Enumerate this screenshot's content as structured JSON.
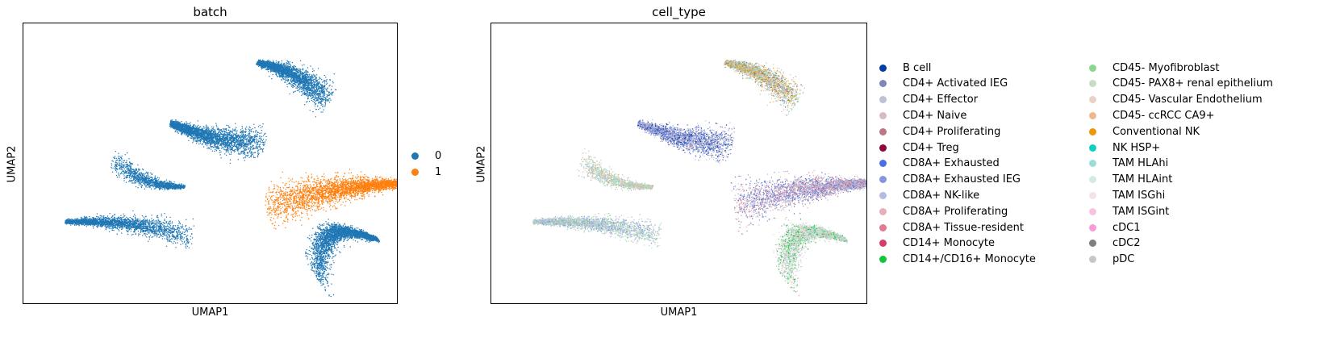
{
  "charts": [
    {
      "title": "batch",
      "xlabel": "UMAP1",
      "ylabel": "UMAP2",
      "legend_title": "",
      "legend": [
        {
          "label": "0",
          "color": "#1f77b4"
        },
        {
          "label": "1",
          "color": "#ff7f0e"
        }
      ]
    },
    {
      "title": "cell_type",
      "xlabel": "UMAP1",
      "ylabel": "UMAP2",
      "legend": [
        {
          "label": "B cell",
          "color": "#023fa5"
        },
        {
          "label": "CD4+ Activated IEG",
          "color": "#7d87b9"
        },
        {
          "label": "CD4+ Effector",
          "color": "#bec1d4"
        },
        {
          "label": "CD4+ Naive",
          "color": "#d6bcc0"
        },
        {
          "label": "CD4+ Proliferating",
          "color": "#bb7784"
        },
        {
          "label": "CD4+ Treg",
          "color": "#8e063b"
        },
        {
          "label": "CD8A+ Exhausted",
          "color": "#4a6fe3"
        },
        {
          "label": "CD8A+ Exhausted IEG",
          "color": "#8595e1"
        },
        {
          "label": "CD8A+ NK-like",
          "color": "#b5bbe3"
        },
        {
          "label": "CD8A+ Proliferating",
          "color": "#e6afb9"
        },
        {
          "label": "CD8A+ Tissue-resident",
          "color": "#e07b91"
        },
        {
          "label": "CD14+ Monocyte",
          "color": "#d33f6a"
        },
        {
          "label": "CD14+/CD16+ Monocyte",
          "color": "#11c638"
        },
        {
          "label": "CD45- Myofibroblast",
          "color": "#8dd593"
        },
        {
          "label": "CD45- PAX8+ renal epithelium",
          "color": "#c6dec7"
        },
        {
          "label": "CD45- Vascular Endothelium",
          "color": "#ead3c6"
        },
        {
          "label": "CD45- ccRCC CA9+",
          "color": "#f0b98d"
        },
        {
          "label": "Conventional NK",
          "color": "#ef9708"
        },
        {
          "label": "NK HSP+",
          "color": "#0fcfc0"
        },
        {
          "label": "TAM HLAhi",
          "color": "#9cded6"
        },
        {
          "label": "TAM HLAint",
          "color": "#d5eae7"
        },
        {
          "label": "TAM ISGhi",
          "color": "#f3e1eb"
        },
        {
          "label": "TAM ISGint",
          "color": "#f6c4e1"
        },
        {
          "label": "cDC1",
          "color": "#f79cd4"
        },
        {
          "label": "cDC2",
          "color": "#7f7f7f"
        },
        {
          "label": "pDC",
          "color": "#c7c7c7"
        }
      ]
    }
  ],
  "chart_data": [
    {
      "type": "scatter",
      "title": "batch",
      "xlabel": "UMAP1",
      "ylabel": "UMAP2",
      "ticks": "none",
      "series": [
        {
          "name": "0",
          "color": "#1f77b4",
          "clusters": [
            "top",
            "upper-middle",
            "left-small",
            "bottom-left",
            "bottom-right"
          ]
        },
        {
          "name": "1",
          "color": "#ff7f0e",
          "clusters": [
            "middle-right"
          ]
        }
      ]
    },
    {
      "type": "scatter",
      "title": "cell_type",
      "xlabel": "UMAP1",
      "ylabel": "UMAP2",
      "ticks": "none",
      "series_count": 26
    }
  ]
}
